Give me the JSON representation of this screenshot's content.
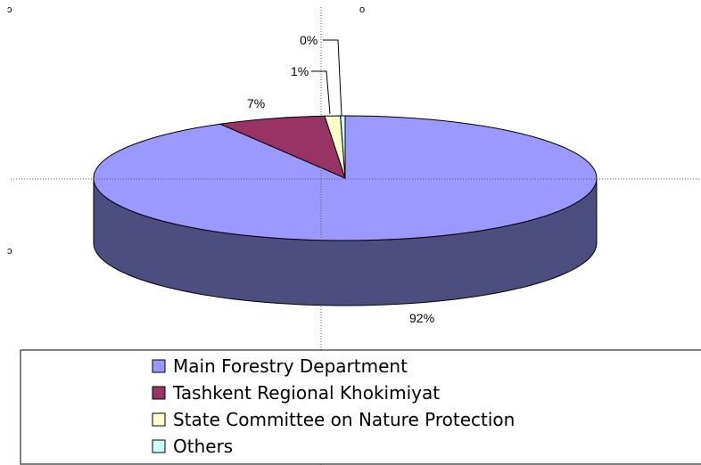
{
  "chart_data": {
    "type": "pie",
    "three_d": true,
    "slices": [
      {
        "label": "Main Forestry Department",
        "value": 92,
        "data_label": "92%",
        "color": "#9999ff",
        "side_color": "#4d4d7f"
      },
      {
        "label": "Tashkent Regional Khokimiyat",
        "value": 7,
        "data_label": "7%",
        "color": "#993366",
        "side_color": "#4d1a33"
      },
      {
        "label": "State Committee on Nature Protection",
        "value": 1,
        "data_label": "1%",
        "color": "#ffffcc",
        "side_color": "#808066"
      },
      {
        "label": "Others",
        "value": 0.3,
        "data_label": "0%",
        "color": "#ccffff",
        "side_color": "#668080"
      }
    ],
    "legend": {
      "placement": "bottom",
      "entries": [
        "Main Forestry Department",
        "Tashkent Regional Khokimiyat",
        "State Committee on Nature Protection",
        "Others"
      ]
    },
    "selection_handles": [
      "ɔ",
      "o",
      "ɔ"
    ]
  }
}
